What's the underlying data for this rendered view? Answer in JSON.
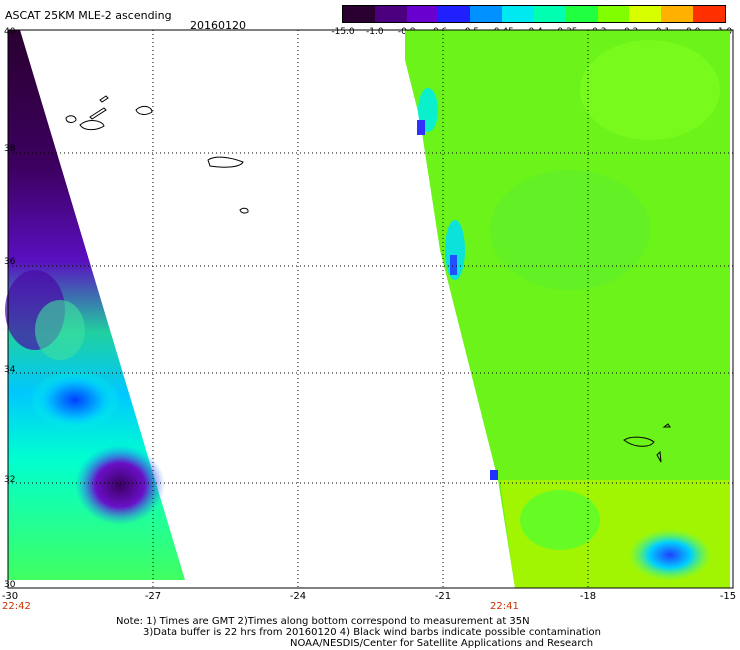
{
  "header": {
    "title": "ASCAT 25KM MLE-2 ascending",
    "date": "20160120"
  },
  "colorbar": {
    "labels": [
      "-15.0",
      "-1.0",
      "-0.8",
      "-0.6",
      "-0.5",
      "-0.45",
      "-0.4",
      "-0.35",
      "-0.3",
      "-0.2",
      "-0.1",
      "0.0",
      "1.0"
    ],
    "colors": [
      "#2a0030",
      "#4b007f",
      "#6a00d0",
      "#2020ff",
      "#0090ff",
      "#00e8f0",
      "#00ffb0",
      "#20ff40",
      "#80ff00",
      "#d8ff00",
      "#ffb000",
      "#ff3000"
    ]
  },
  "axes": {
    "x_ticks": [
      "-30",
      "-27",
      "-24",
      "-21",
      "-18",
      "-15"
    ],
    "y_ticks": [
      "40",
      "38",
      "36",
      "34",
      "32",
      "30"
    ],
    "lon_range": [
      -30,
      -15
    ],
    "lat_range": [
      30,
      40
    ]
  },
  "pass_times": {
    "left": "22:42",
    "right": "22:41"
  },
  "notes": {
    "line1": "Note: 1) Times are GMT 2)Times along bottom correspond to measurement at 35N",
    "line2": "3)Data buffer is 22 hrs from 20160120 4) Black wind barbs indicate possible contamination",
    "line3": "NOAA/NESDIS/Center for Satellite Applications and Research"
  },
  "map": {
    "islands": [
      "Azores",
      "Madeira"
    ],
    "swath_count": 2
  }
}
